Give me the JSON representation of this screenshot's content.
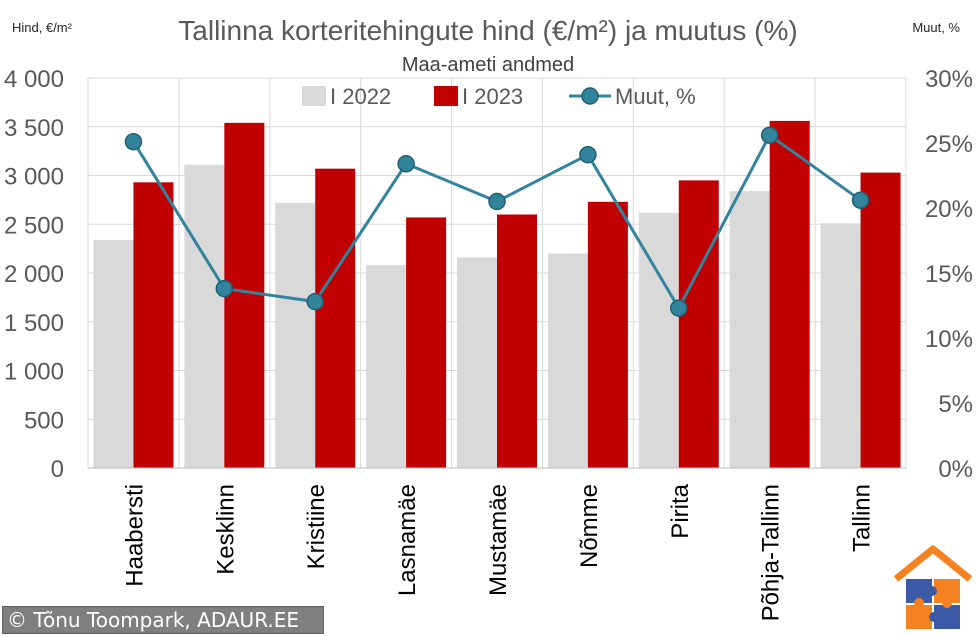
{
  "chart_data": {
    "type": "bar",
    "title": "Tallinna korteritehingute hind (€/m²) ja muutus (%)",
    "subtitle": "Maa-ameti andmed",
    "ylabel": "Hind, €/m²",
    "y2label": "Muut, %",
    "categories": [
      "Haabersti",
      "Kesklinn",
      "Kristiine",
      "Lasnamäe",
      "Mustamäe",
      "Nõmme",
      "Pirita",
      "Põhja-Tallinn",
      "Tallinn"
    ],
    "series": [
      {
        "name": "I 2022",
        "type": "bar",
        "axis": "left",
        "color": "#d9d9d9",
        "values": [
          2340,
          3110,
          2720,
          2080,
          2160,
          2200,
          2620,
          2840,
          2510
        ]
      },
      {
        "name": "I 2023",
        "type": "bar",
        "axis": "left",
        "color": "#c00000",
        "values": [
          2930,
          3540,
          3070,
          2570,
          2600,
          2730,
          2950,
          3560,
          3030
        ]
      },
      {
        "name": "Muut, %",
        "type": "line",
        "axis": "right",
        "color": "#31849b",
        "values": [
          25.1,
          13.8,
          12.8,
          23.4,
          20.5,
          24.1,
          12.3,
          25.6,
          20.6
        ]
      }
    ],
    "ylim": [
      0,
      4000
    ],
    "y_ticks": [
      "0",
      "500",
      "1 000",
      "1 500",
      "2 000",
      "2 500",
      "3 000",
      "3 500",
      "4 000"
    ],
    "y2lim": [
      0,
      30
    ],
    "y2_ticks": [
      "0%",
      "5%",
      "10%",
      "15%",
      "20%",
      "25%",
      "30%"
    ],
    "grid": true,
    "legend_position": "top"
  },
  "credit": "© Tõnu Toompark, ADAUR.EE",
  "logo": {
    "icon": "house-puzzle-logo",
    "colors": [
      "#f58220",
      "#3b5ba9",
      "#f58220",
      "#3b5ba9"
    ]
  }
}
